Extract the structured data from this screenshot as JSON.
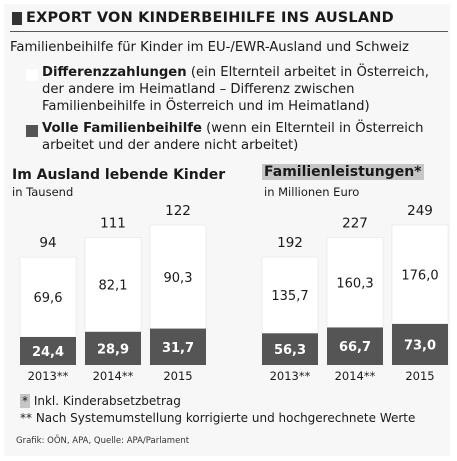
{
  "header": {
    "title": "EXPORT VON KINDERBEIHILFE INS AUSLAND",
    "subtitle": "Familienbeihilfe für Kinder im EU-/EWR-Ausland und Schweiz"
  },
  "legend": [
    {
      "bold": "Differenzzahlungen",
      "text": " (ein Elternteil arbeitet in Österreich, der andere im Heimatland – Differenz zwischen Familienbeihilfe in Österreich und im Heimatland)",
      "color": "#ffffff"
    },
    {
      "bold": "Volle Familienbeihilfe",
      "text": " (wenn ein Elternteil in Österreich arbeitet und der andere nicht arbeitet)",
      "color": "#555555"
    }
  ],
  "chart_data": [
    {
      "type": "bar",
      "stacked": true,
      "title": "Im Ausland lebende Kinder",
      "subtitle": "in Tausend",
      "categories": [
        "2013**",
        "2014**",
        "2015"
      ],
      "totals": [
        "94",
        "111",
        "122"
      ],
      "series": [
        {
          "name": "Volle Familienbeihilfe",
          "values": [
            24.4,
            28.9,
            31.7
          ],
          "labels": [
            "24,4",
            "28,9",
            "31,7"
          ],
          "color": "#555555"
        },
        {
          "name": "Differenzzahlungen",
          "values": [
            69.6,
            82.1,
            90.3
          ],
          "labels": [
            "69,6",
            "82,1",
            "90,3"
          ],
          "color": "#ffffff"
        }
      ]
    },
    {
      "type": "bar",
      "stacked": true,
      "title": "Familienleistungen*",
      "subtitle": "in Millionen Euro",
      "categories": [
        "2013**",
        "2014**",
        "2015"
      ],
      "totals": [
        "192",
        "227",
        "249"
      ],
      "series": [
        {
          "name": "Volle Familienbeihilfe",
          "values": [
            56.3,
            66.7,
            73.0
          ],
          "labels": [
            "56,3",
            "66,7",
            "73,0"
          ],
          "color": "#555555"
        },
        {
          "name": "Differenzzahlungen",
          "values": [
            135.7,
            160.3,
            176.0
          ],
          "labels": [
            "135,7",
            "160,3",
            "176,0"
          ],
          "color": "#ffffff"
        }
      ]
    }
  ],
  "footnotes": {
    "star": "*",
    "star_text": "Inkl. Kinderabsetzbetrag",
    "double_star": "**  Nach Systemumstellung korrigierte und hochgerechnete Werte"
  },
  "credit": "Grafik: OÖN, APA, Quelle: APA/Parlament"
}
